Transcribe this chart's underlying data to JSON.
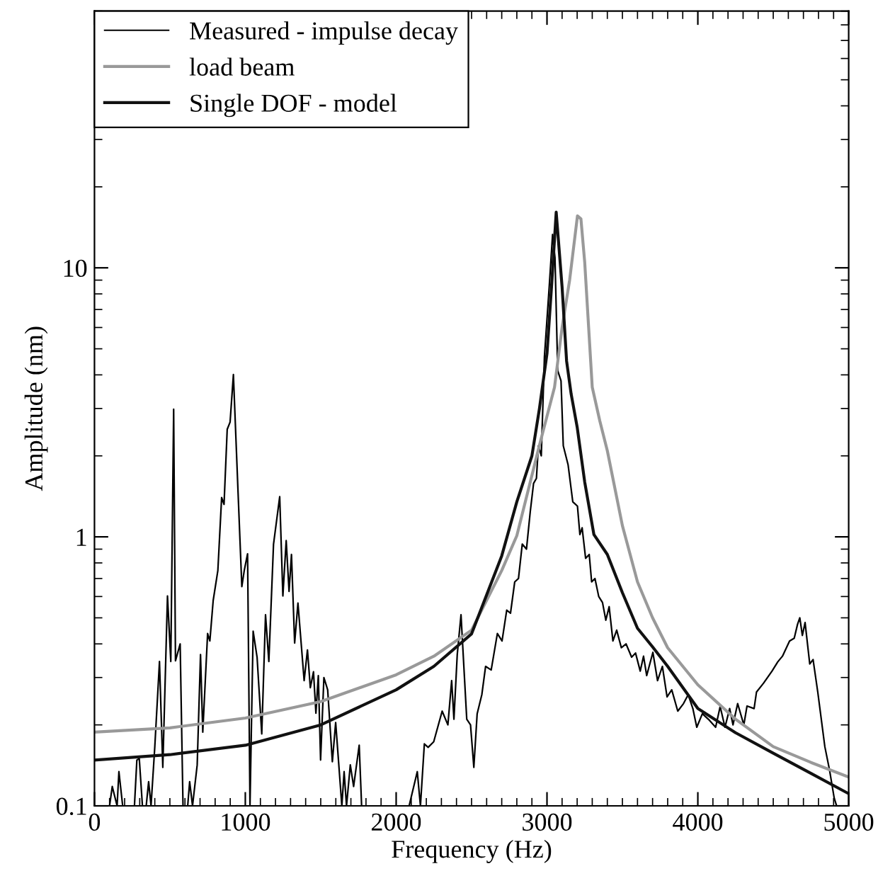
{
  "chart_data": {
    "type": "line",
    "xlabel": "Frequency (Hz)",
    "ylabel": "Amplitude (nm)",
    "log": "y",
    "xlim": [
      0,
      5000
    ],
    "ylim": [
      0.1,
      90
    ],
    "xticks": [
      0,
      1000,
      2000,
      3000,
      4000,
      5000
    ],
    "yticks": [
      0.1,
      1,
      10
    ],
    "legend": "top left",
    "grid": false,
    "series": [
      {
        "name": "Measured - impulse decay",
        "color": "#000000",
        "x": [
          100,
          118,
          150,
          162,
          187,
          265,
          281,
          297,
          318,
          343,
          359,
          375,
          400,
          431,
          453,
          484,
          506,
          525,
          537,
          568,
          587,
          618,
          631,
          650,
          681,
          703,
          718,
          750,
          765,
          787,
          818,
          843,
          859,
          880,
          899,
          921,
          952,
          977,
          993,
          1015,
          1031,
          1052,
          1078,
          1109,
          1134,
          1156,
          1187,
          1228,
          1249,
          1271,
          1290,
          1306,
          1327,
          1349,
          1390,
          1412,
          1431,
          1452,
          1468,
          1484,
          1499,
          1521,
          1546,
          1577,
          1599,
          1640,
          1655,
          1671,
          1696,
          1718,
          1755,
          1771,
          2086,
          2140,
          2161,
          2187,
          2212,
          2249,
          2305,
          2343,
          2368,
          2383,
          2405,
          2430,
          2468,
          2493,
          2515,
          2537,
          2568,
          2593,
          2630,
          2671,
          2702,
          2733,
          2758,
          2786,
          2811,
          2836,
          2864,
          2889,
          2911,
          2930,
          2943,
          2962,
          2983,
          3015,
          3037,
          3053,
          3071,
          3093,
          3108,
          3140,
          3171,
          3202,
          3218,
          3233,
          3256,
          3280,
          3296,
          3318,
          3343,
          3368,
          3390,
          3412,
          3437,
          3462,
          3493,
          3524,
          3561,
          3587,
          3618,
          3640,
          3661,
          3702,
          3733,
          3765,
          3796,
          3827,
          3867,
          3905,
          3936,
          3967,
          3993,
          4030,
          4077,
          4118,
          4148,
          4180,
          4211,
          4233,
          4264,
          4305,
          4326,
          4373,
          4389,
          4436,
          4492,
          4530,
          4561,
          4608,
          4639,
          4661,
          4676,
          4693,
          4711,
          4742,
          4764,
          4795,
          4842,
          4873,
          4904,
          4920
        ],
        "values": [
          0.1,
          0.118,
          0.1,
          0.134,
          0.1,
          0.1,
          0.148,
          0.15,
          0.1,
          0.1,
          0.123,
          0.1,
          0.166,
          0.344,
          0.139,
          0.603,
          0.344,
          2.98,
          0.346,
          0.4,
          0.1,
          0.1,
          0.123,
          0.1,
          0.142,
          0.365,
          0.188,
          0.437,
          0.41,
          0.58,
          0.75,
          1.4,
          1.32,
          2.51,
          2.67,
          4.01,
          1.46,
          0.653,
          0.75,
          0.865,
          0.1,
          0.446,
          0.357,
          0.185,
          0.513,
          0.344,
          0.938,
          1.41,
          0.603,
          0.968,
          0.627,
          0.86,
          0.403,
          0.567,
          0.292,
          0.38,
          0.275,
          0.315,
          0.221,
          0.305,
          0.148,
          0.3,
          0.27,
          0.146,
          0.204,
          0.1,
          0.134,
          0.1,
          0.142,
          0.118,
          0.168,
          0.1,
          0.1,
          0.134,
          0.1,
          0.17,
          0.165,
          0.173,
          0.225,
          0.2,
          0.292,
          0.21,
          0.365,
          0.513,
          0.21,
          0.2,
          0.139,
          0.22,
          0.259,
          0.33,
          0.32,
          0.437,
          0.41,
          0.534,
          0.52,
          0.68,
          0.7,
          0.94,
          0.9,
          1.24,
          1.58,
          1.65,
          2.18,
          2.0,
          4.68,
          8.55,
          13.3,
          10.9,
          4.15,
          3.8,
          2.18,
          1.85,
          1.35,
          1.3,
          1.02,
          1.08,
          0.832,
          0.86,
          0.68,
          0.7,
          0.6,
          0.57,
          0.49,
          0.55,
          0.41,
          0.45,
          0.387,
          0.4,
          0.357,
          0.37,
          0.317,
          0.36,
          0.305,
          0.372,
          0.292,
          0.33,
          0.254,
          0.27,
          0.225,
          0.24,
          0.259,
          0.23,
          0.196,
          0.22,
          0.208,
          0.196,
          0.234,
          0.196,
          0.23,
          0.2,
          0.24,
          0.2,
          0.235,
          0.23,
          0.265,
          0.286,
          0.317,
          0.343,
          0.36,
          0.41,
          0.42,
          0.473,
          0.5,
          0.43,
          0.48,
          0.337,
          0.35,
          0.265,
          0.166,
          0.136,
          0.107,
          0.1
        ]
      },
      {
        "name": "load beam",
        "color": "#999999",
        "x": [
          0,
          500,
          1000,
          1500,
          2000,
          2250,
          2500,
          2700,
          2800,
          2950,
          3050,
          3100,
          3150,
          3202,
          3225,
          3250,
          3300,
          3350,
          3400,
          3500,
          3600,
          3700,
          3800,
          4000,
          4250,
          4500,
          4750,
          5000
        ],
        "values": [
          0.188,
          0.195,
          0.212,
          0.244,
          0.307,
          0.36,
          0.45,
          0.75,
          1.01,
          2.19,
          3.6,
          6.0,
          9.0,
          15.6,
          15.2,
          10.5,
          3.6,
          2.7,
          2.09,
          1.1,
          0.68,
          0.5,
          0.387,
          0.282,
          0.21,
          0.166,
          0.145,
          0.128
        ]
      },
      {
        "name": "Single DOF - model",
        "color": "#111111",
        "x": [
          0,
          500,
          1000,
          1500,
          2000,
          2250,
          2500,
          2700,
          2800,
          2900,
          2950,
          3000,
          3030,
          3061,
          3100,
          3130,
          3160,
          3200,
          3250,
          3311,
          3400,
          3500,
          3600,
          3700,
          3800,
          4000,
          4250,
          4500,
          4750,
          5000
        ],
        "values": [
          0.148,
          0.155,
          0.168,
          0.2,
          0.27,
          0.33,
          0.436,
          0.85,
          1.35,
          2.0,
          3.0,
          4.8,
          8.5,
          16.1,
          8.5,
          4.5,
          3.4,
          2.56,
          1.6,
          1.02,
          0.86,
          0.62,
          0.457,
          0.39,
          0.33,
          0.23,
          0.187,
          0.157,
          0.132,
          0.111
        ]
      }
    ]
  }
}
